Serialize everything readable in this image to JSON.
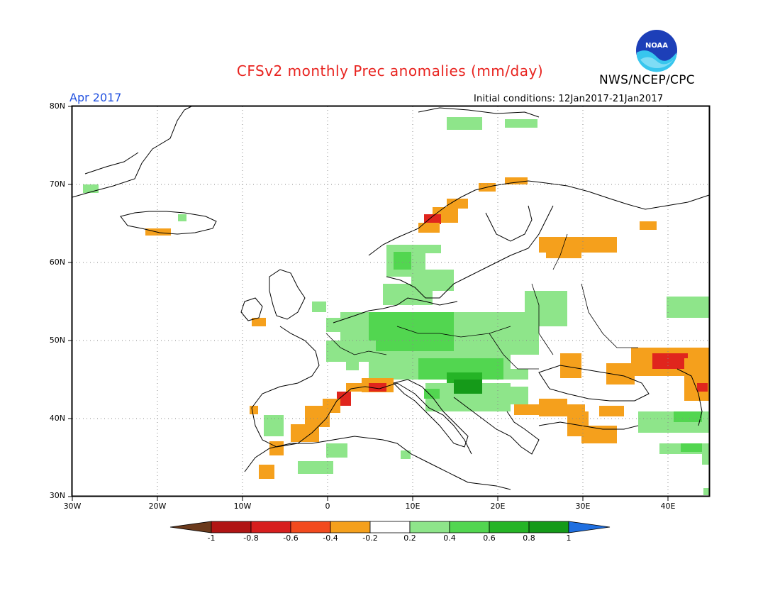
{
  "title": "CFSv2 monthly Prec anomalies (mm/day)",
  "agency": "NWS/NCEP/CPC",
  "logo_text": "NOAA",
  "month": "Apr 2017",
  "initial_conditions": "Initial conditions: 12Jan2017-21Jan2017",
  "lat_ticks": [
    "80N",
    "70N",
    "60N",
    "50N",
    "40N",
    "30N"
  ],
  "lon_ticks": [
    "30W",
    "20W",
    "10W",
    "0",
    "10E",
    "20E",
    "30E",
    "40E"
  ],
  "colorbar": {
    "ticks": [
      "-1",
      "-0.8",
      "-0.6",
      "-0.4",
      "-0.2",
      "0.2",
      "0.4",
      "0.6",
      "0.8",
      "1"
    ],
    "colors": [
      "#6b3a1c",
      "#b01414",
      "#d71e1e",
      "#f24a1e",
      "#f5a01c",
      "#ffffff",
      "#8ee58a",
      "#52d650",
      "#25b426",
      "#159a19",
      "#1f6fe0"
    ]
  }
}
